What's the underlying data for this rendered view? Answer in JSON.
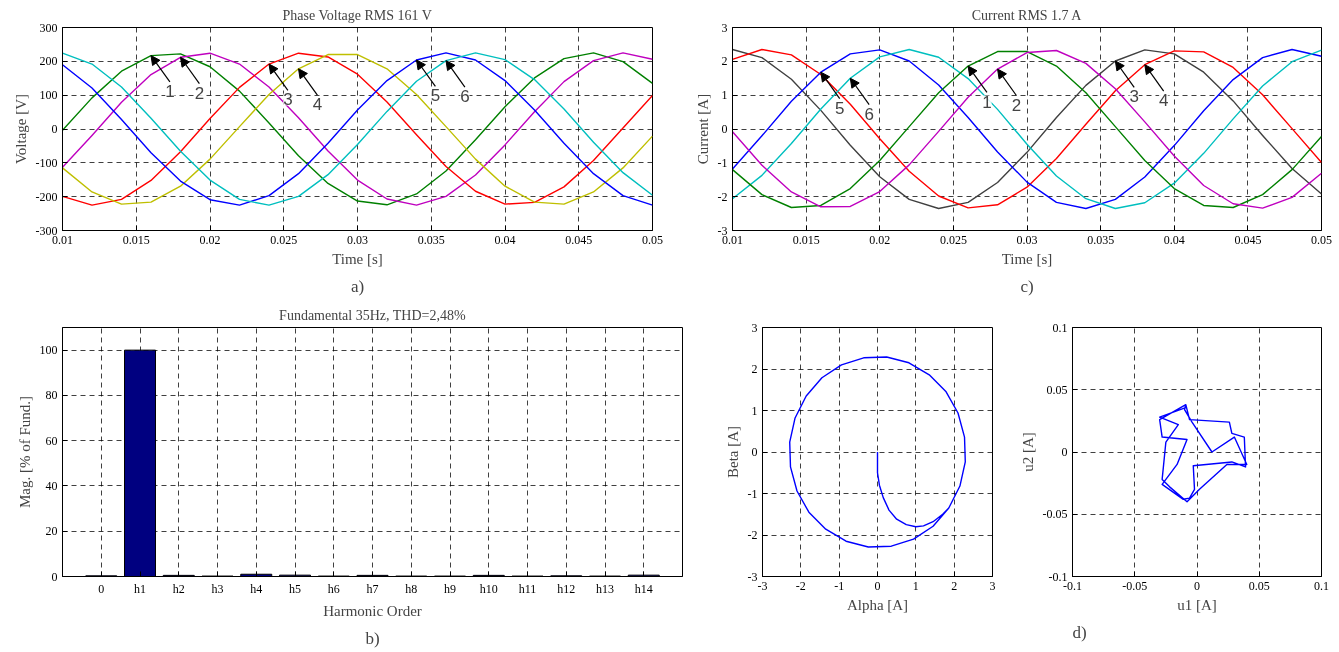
{
  "chart_data": [
    {
      "type": "line",
      "title": "Phase Voltage RMS 161 V",
      "xlabel": "Time [s]",
      "ylabel": "Voltage [V]",
      "x": [
        0.01,
        0.012,
        0.014,
        0.016,
        0.018,
        0.02,
        0.022,
        0.024,
        0.026,
        0.028,
        0.03,
        0.032,
        0.034,
        0.036,
        0.038,
        0.04,
        0.042,
        0.044,
        0.046,
        0.048,
        0.05
      ],
      "series": [
        {
          "color": "#008000",
          "values": [
            -4,
            92,
            171,
            217,
            222,
            184,
            112,
            18,
            -79,
            -161,
            -213,
            -224,
            -192,
            -124,
            -32,
            66,
            151,
            208,
            225,
            199,
            135
          ]
        },
        {
          "color": "#bf00bf",
          "values": [
            -113,
            -19,
            79,
            161,
            212,
            224,
            192,
            124,
            33,
            -65,
            -151,
            -207,
            -225,
            -199,
            -136,
            -47,
            51,
            140,
            202,
            225,
            206
          ]
        },
        {
          "color": "#ff0000",
          "values": [
            -199,
            -225,
            -208,
            -152,
            -67,
            31,
            123,
            192,
            224,
            213,
            162,
            80,
            -17,
            -111,
            -184,
            -222,
            -217,
            -171,
            -93,
            3,
            99
          ]
        },
        {
          "color": "#bfbf00",
          "values": [
            -115,
            -186,
            -222,
            -216,
            -169,
            -89,
            7,
            102,
            178,
            220,
            220,
            178,
            102,
            7,
            -89,
            -169,
            -216,
            -222,
            -186,
            -115,
            -21
          ]
        },
        {
          "color": "#0000ff",
          "values": [
            190,
            121,
            28,
            -70,
            -154,
            -209,
            -225,
            -197,
            -132,
            -42,
            56,
            143,
            204,
            225,
            204,
            143,
            56,
            -42,
            -132,
            -197,
            -225
          ]
        },
        {
          "color": "#00bfbf",
          "values": [
            224,
            192,
            124,
            32,
            -66,
            -151,
            -208,
            -225,
            -199,
            -135,
            -46,
            52,
            141,
            202,
            225,
            205,
            146,
            59,
            -39,
            -129,
            -196
          ]
        }
      ],
      "xlim": [
        0.01,
        0.05
      ],
      "ylim": [
        -300,
        300
      ],
      "xticks": [
        0.01,
        0.015,
        0.02,
        0.025,
        0.03,
        0.035,
        0.04,
        0.045,
        0.05
      ],
      "yticks": [
        -300,
        -200,
        -100,
        0,
        100,
        200,
        300
      ],
      "grid": true,
      "annotations": [
        {
          "text": "1",
          "x": 0.016,
          "y": 217
        },
        {
          "text": "2",
          "x": 0.018,
          "y": 212
        },
        {
          "text": "3",
          "x": 0.024,
          "y": 192
        },
        {
          "text": "4",
          "x": 0.026,
          "y": 178
        },
        {
          "text": "5",
          "x": 0.034,
          "y": 204
        },
        {
          "text": "6",
          "x": 0.036,
          "y": 202
        },
        "a)"
      ]
    },
    {
      "type": "line",
      "title": "Current RMS 1.7 A",
      "xlabel": "Time [s]",
      "ylabel": "Current [A]",
      "x": [
        0.01,
        0.012,
        0.014,
        0.016,
        0.018,
        0.02,
        0.022,
        0.024,
        0.026,
        0.028,
        0.03,
        0.032,
        0.034,
        0.036,
        0.038,
        0.04,
        0.042,
        0.044,
        0.046,
        0.048,
        0.05
      ],
      "series": [
        {
          "color": "#404040",
          "values": [
            2.35,
            2.11,
            1.47,
            0.55,
            -0.48,
            -1.41,
            -2.08,
            -2.35,
            -2.17,
            -1.58,
            -0.69,
            0.34,
            1.29,
            2.01,
            2.34,
            2.22,
            1.68,
            0.83,
            -0.19,
            -1.17,
            -1.92
          ]
        },
        {
          "color": "#ff0000",
          "values": [
            2.06,
            2.35,
            2.19,
            1.61,
            0.73,
            -0.29,
            -1.25,
            -1.98,
            -2.33,
            -2.24,
            -1.72,
            -0.87,
            0.14,
            1.13,
            1.9,
            2.31,
            2.28,
            1.82,
            1.01,
            0.01,
            -0.99
          ]
        },
        {
          "color": "#0000ff",
          "values": [
            -1.18,
            -0.2,
            0.82,
            1.68,
            2.22,
            2.34,
            2.01,
            1.3,
            0.34,
            -0.68,
            -1.57,
            -2.17,
            -2.35,
            -2.08,
            -1.42,
            -0.49,
            0.54,
            1.46,
            2.11,
            2.35,
            2.15
          ]
        },
        {
          "color": "#00bfbf",
          "values": [
            -2.06,
            -1.37,
            -0.43,
            0.59,
            1.5,
            2.13,
            2.35,
            2.12,
            1.49,
            0.58,
            -0.45,
            -1.39,
            -2.06,
            -2.35,
            -2.18,
            -1.6,
            -0.72,
            0.3,
            1.27,
            1.99,
            2.33
          ]
        },
        {
          "color": "#008000",
          "values": [
            -1.2,
            -1.94,
            -2.32,
            -2.26,
            -1.76,
            -0.93,
            0.07,
            1.07,
            1.86,
            2.29,
            2.29,
            1.86,
            1.07,
            0.07,
            -0.93,
            -1.76,
            -2.26,
            -2.32,
            -1.94,
            -1.2,
            -0.22
          ]
        },
        {
          "color": "#bf00bf",
          "values": [
            -0.08,
            -1.07,
            -1.86,
            -2.3,
            -2.29,
            -1.85,
            -1.06,
            -0.07,
            0.94,
            1.77,
            2.26,
            2.32,
            1.94,
            1.19,
            0.21,
            -0.8,
            -1.67,
            -2.21,
            -2.34,
            -2.02,
            -1.31
          ]
        }
      ],
      "xlim": [
        0.01,
        0.05
      ],
      "ylim": [
        -3,
        3
      ],
      "xticks": [
        0.01,
        0.015,
        0.02,
        0.025,
        0.03,
        0.035,
        0.04,
        0.045,
        0.05
      ],
      "yticks": [
        -3,
        -2,
        -1,
        0,
        1,
        2,
        3
      ],
      "grid": true,
      "annotations": [
        {
          "text": "5",
          "x": 0.016,
          "y": 1.68
        },
        {
          "text": "6",
          "x": 0.018,
          "y": 1.5
        },
        {
          "text": "1",
          "x": 0.026,
          "y": 1.86
        },
        {
          "text": "2",
          "x": 0.028,
          "y": 1.77
        },
        {
          "text": "3",
          "x": 0.036,
          "y": 2.01
        },
        {
          "text": "4",
          "x": 0.038,
          "y": 1.9
        },
        "c)"
      ]
    },
    {
      "type": "bar",
      "title": "Fundamental 35Hz, THD=2,48%",
      "xlabel": "Harmonic Order",
      "ylabel": "Mag. [% of Fund.]",
      "categories": [
        "0",
        "h1",
        "h2",
        "h3",
        "h4",
        "h5",
        "h6",
        "h7",
        "h8",
        "h9",
        "h10",
        "h11",
        "h12",
        "h13",
        "h14"
      ],
      "values": [
        0.3,
        100,
        0.5,
        0.2,
        1.0,
        0.6,
        0.2,
        0.5,
        0.2,
        0.2,
        0.5,
        0.2,
        0.3,
        0.2,
        0.6
      ],
      "color": "#000080",
      "ylim": [
        0,
        110
      ],
      "yticks": [
        0,
        20,
        40,
        60,
        80,
        100
      ],
      "grid": true,
      "annotations": [
        "b)"
      ]
    },
    {
      "type": "line",
      "xlabel": "Alpha [A]",
      "ylabel": "Beta [A]",
      "series": [
        {
          "color": "#0000ff",
          "x": [
            0,
            0,
            0.05,
            0.15,
            0.3,
            0.5,
            0.75,
            1.0,
            1.2,
            1.45,
            1.7,
            1.86,
            2.15,
            2.29,
            2.27,
            2.1,
            1.79,
            1.35,
            0.82,
            0.24,
            -0.36,
            -0.94,
            -1.45,
            -1.86,
            -2.15,
            -2.29,
            -2.27,
            -2.1,
            -1.79,
            -1.35,
            -0.82,
            -0.24,
            0.36,
            0.94,
            1.45,
            1.86
          ],
          "values": [
            0,
            -0.5,
            -0.8,
            -1.1,
            -1.4,
            -1.62,
            -1.75,
            -1.8,
            -1.78,
            -1.68,
            -1.5,
            -1.35,
            -0.82,
            -0.24,
            0.36,
            0.94,
            1.45,
            1.86,
            2.15,
            2.29,
            2.27,
            2.1,
            1.79,
            1.35,
            0.82,
            0.24,
            -0.36,
            -0.94,
            -1.45,
            -1.86,
            -2.15,
            -2.29,
            -2.27,
            -2.1,
            -1.79,
            -1.35
          ]
        }
      ],
      "xlim": [
        -3,
        3
      ],
      "ylim": [
        -3,
        3
      ],
      "xticks": [
        -3,
        -2,
        -1,
        0,
        1,
        2,
        3
      ],
      "yticks": [
        -3,
        -2,
        -1,
        0,
        1,
        2,
        3
      ],
      "grid": true
    },
    {
      "type": "line",
      "xlabel": "u1 [A]",
      "ylabel": "u2 [A]",
      "series": [
        {
          "color": "#0000ff",
          "x": [
            -0.009,
            -0.006,
            0.026,
            0.028,
            0.038,
            0.039,
            0.028,
            -0.003,
            -0.002,
            -0.006,
            -0.011,
            -0.028,
            -0.016,
            -0.008,
            -0.028,
            -0.03,
            -0.009,
            -0.01,
            -0.004,
            0.012,
            0.03,
            0.04,
            0.024,
            0.002,
            -0.008,
            -0.022,
            -0.028,
            -0.025,
            -0.015,
            -0.03,
            -0.008
          ],
          "values": [
            0.038,
            0.026,
            0.024,
            0.015,
            0.012,
            -0.012,
            -0.008,
            -0.011,
            -0.03,
            -0.037,
            -0.038,
            -0.026,
            -0.01,
            0.01,
            0.012,
            0.026,
            0.038,
            0.034,
            0.024,
            0.0,
            0.012,
            -0.01,
            -0.01,
            -0.03,
            -0.04,
            -0.028,
            -0.022,
            0.008,
            0.022,
            0.028,
            0.036
          ]
        }
      ],
      "xlim": [
        -0.1,
        0.1
      ],
      "ylim": [
        -0.1,
        0.1
      ],
      "xticks": [
        -0.1,
        -0.05,
        0,
        0.05,
        0.1
      ],
      "yticks": [
        -0.1,
        -0.05,
        0,
        0.05,
        0.1
      ],
      "grid": true,
      "annotations": [
        "d)"
      ]
    }
  ]
}
